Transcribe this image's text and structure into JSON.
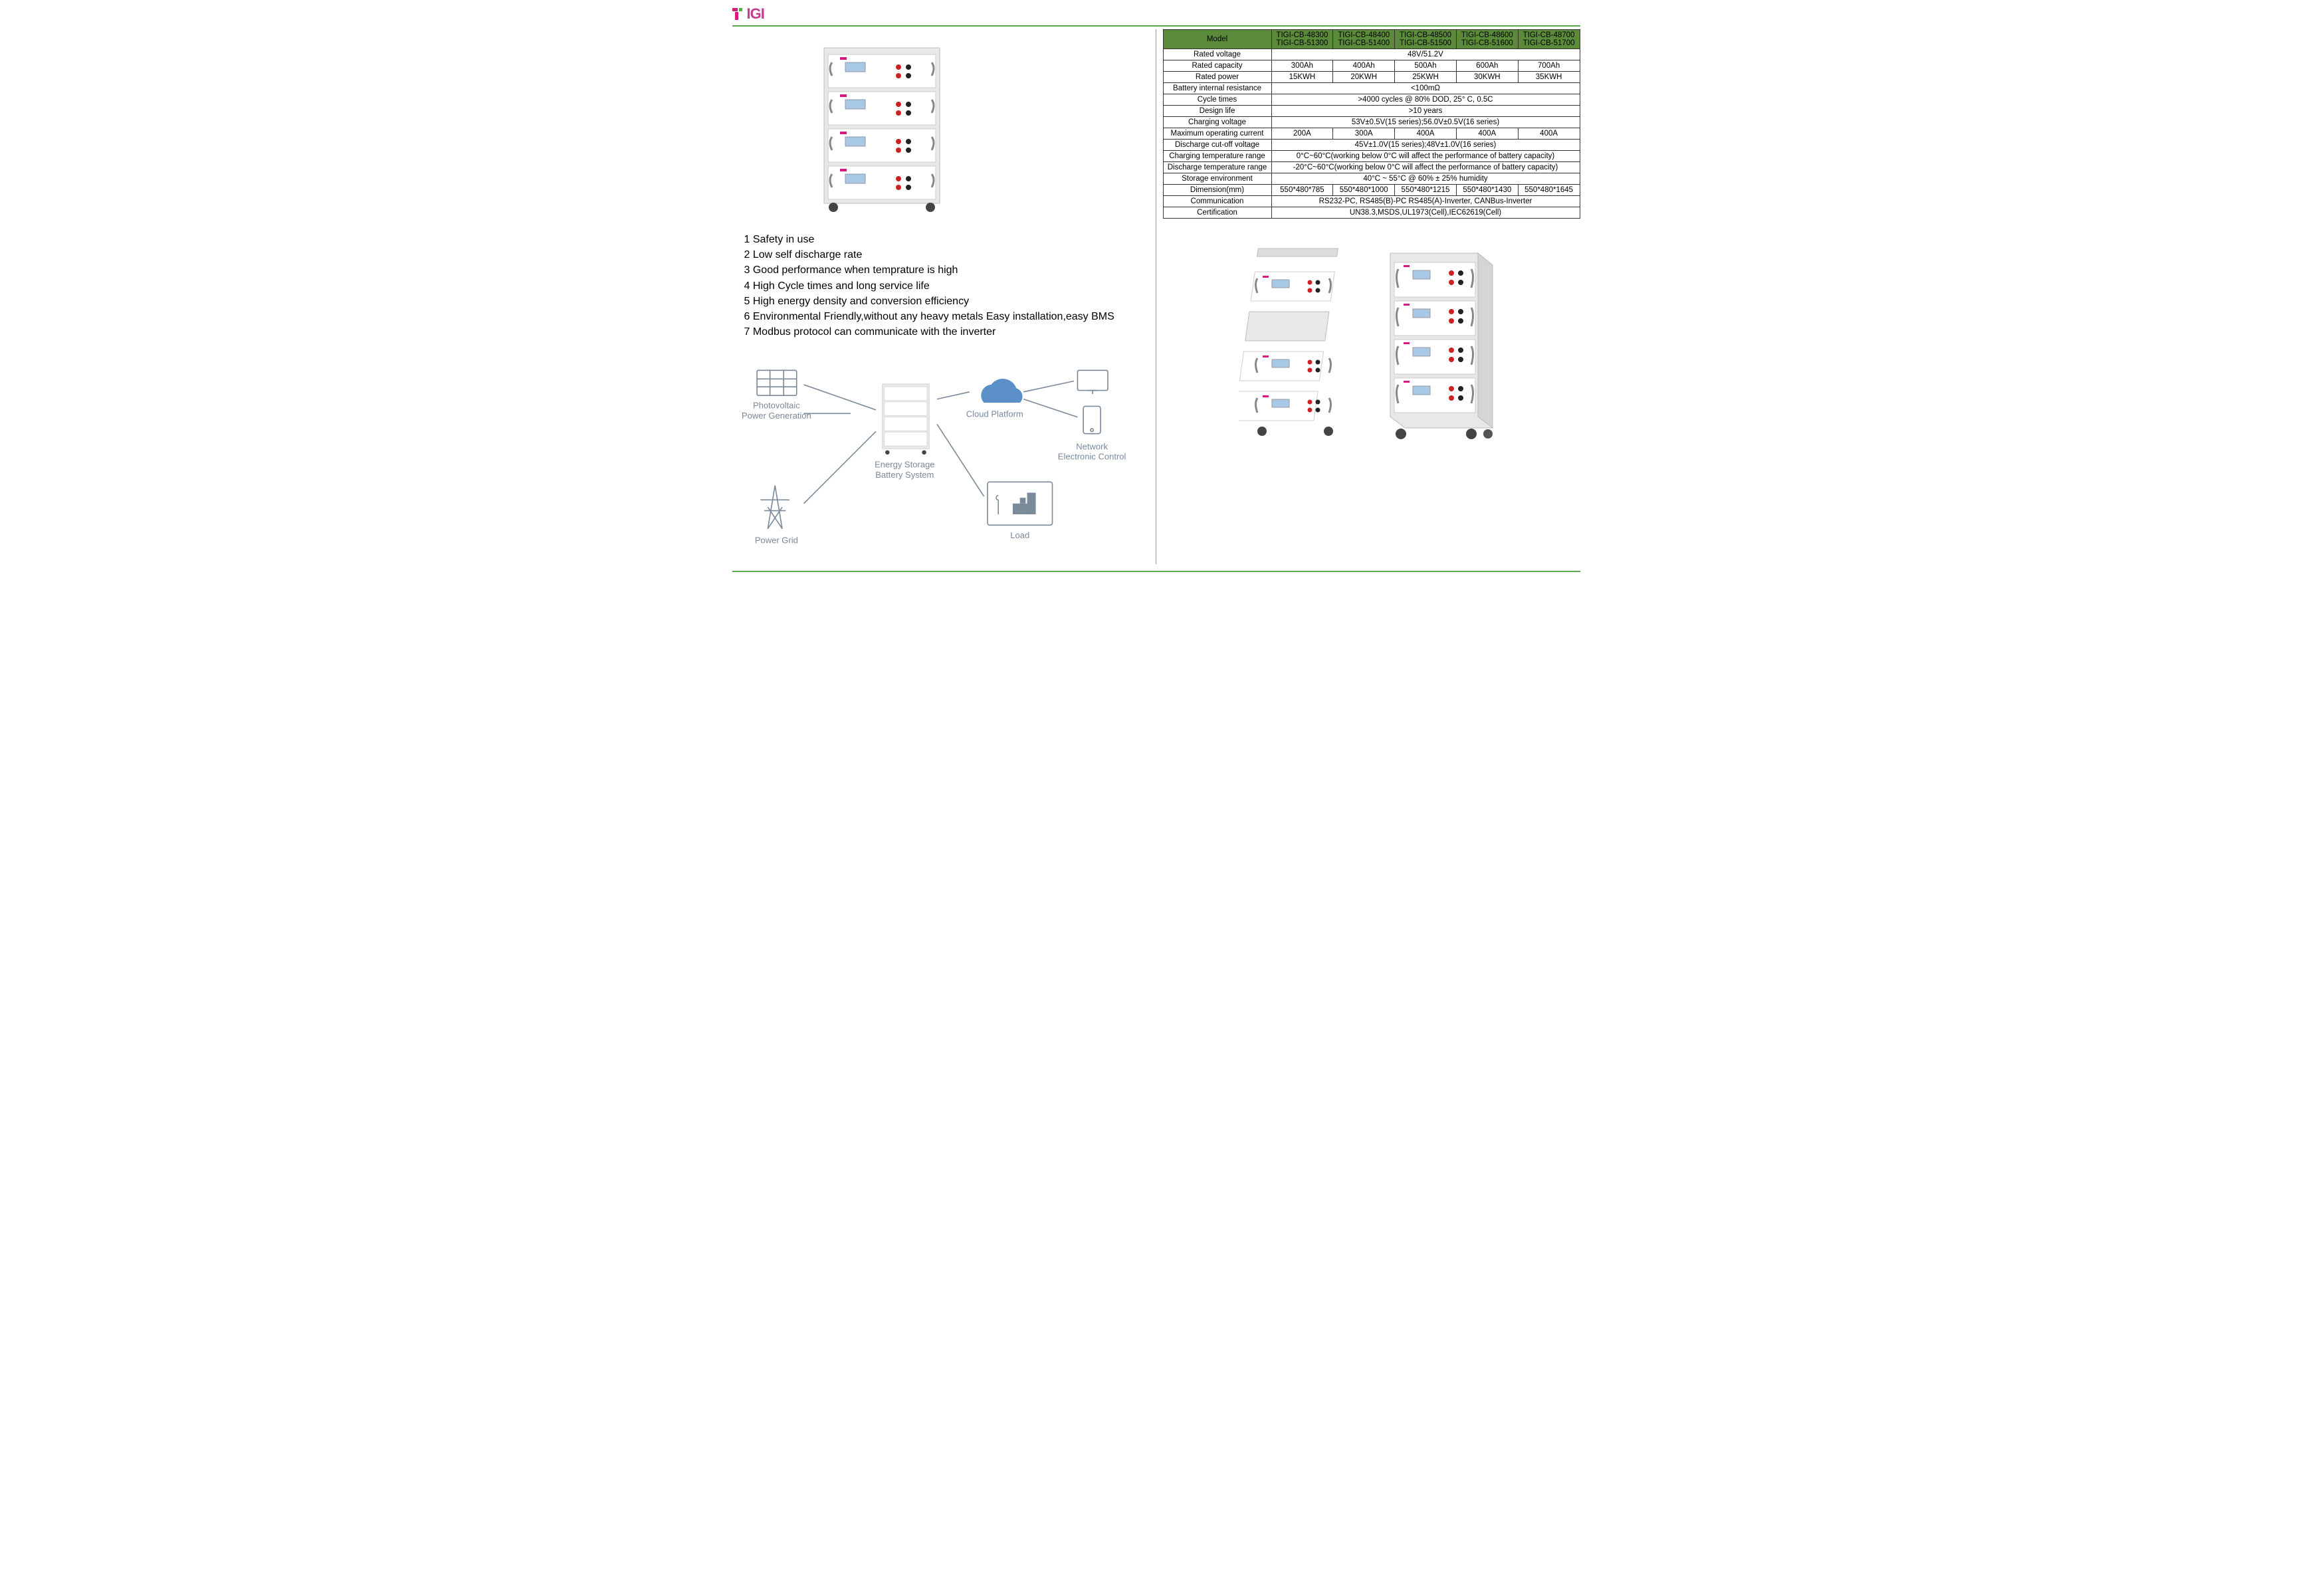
{
  "logo": {
    "t": "T",
    "rest": "IGI"
  },
  "features": [
    "1 Safety in use",
    "2 Low self discharge rate",
    "3 Good performance when temprature is high",
    "4 High Cycle times and long service life",
    "5 High energy density and conversion efficiency",
    "6 Environmental Friendly,without any heavy metals Easy installation,easy BMS",
    "7 Modbus protocol can communicate with the inverter"
  ],
  "diagram": {
    "pv": "Photovoltaic\nPower Generation",
    "grid": "Power Grid",
    "storage": "Energy Storage\nBattery System",
    "cloud": "Cloud Platform",
    "load": "Load",
    "network": "Network\nElectronic Control"
  },
  "spec": {
    "header": {
      "model": "Model",
      "cols": [
        [
          "TIGI-CB-48300",
          "TIGI-CB-51300"
        ],
        [
          "TIGI-CB-48400",
          "TIGI-CB-51400"
        ],
        [
          "TIGI-CB-48500",
          "TIGI-CB-51500"
        ],
        [
          "TIGI-CB-48600",
          "TIGI-CB-51600"
        ],
        [
          "TIGI-CB-48700",
          "TIGI-CB-51700"
        ]
      ]
    },
    "rows": [
      {
        "label": "Rated voltage",
        "span": "48V/51.2V"
      },
      {
        "label": "Rated capacity",
        "cells": [
          "300Ah",
          "400Ah",
          "500Ah",
          "600Ah",
          "700Ah"
        ]
      },
      {
        "label": "Rated power",
        "cells": [
          "15KWH",
          "20KWH",
          "25KWH",
          "30KWH",
          "35KWH"
        ]
      },
      {
        "label": "Battery internal resistance",
        "span": "<100mΩ"
      },
      {
        "label": "Cycle times",
        "span": ">4000 cycles @ 80% DOD, 25° C, 0.5C"
      },
      {
        "label": "Design life",
        "span": ">10 years"
      },
      {
        "label": "Charging voltage",
        "span": "53V±0.5V(15 series);56.0V±0.5V(16 series)"
      },
      {
        "label": "Maximum operating current",
        "cells": [
          "200A",
          "300A",
          "400A",
          "400A",
          "400A"
        ]
      },
      {
        "label": "Discharge cut-off voltage",
        "span": "45V±1.0V(15 series);48V±1.0V(16 series)"
      },
      {
        "label": "Charging temperature range",
        "span": "0°C~60°C(working below 0°C will affect the performance of battery capacity)"
      },
      {
        "label": "Discharge temperature range",
        "span": "-20°C~60°C(working below 0°C will affect the performance of battery capacity)"
      },
      {
        "label": "Storage environment",
        "span": "40°C ~ 55°C @ 60% ± 25% humidity"
      },
      {
        "label": "Dimension(mm)",
        "cells": [
          "550*480*785",
          "550*480*1000",
          "550*480*1215",
          "550*480*1430",
          "550*480*1645"
        ]
      },
      {
        "label": "Communication",
        "span": "RS232-PC, RS485(B)-PC RS485(A)-Inverter, CANBus-Inverter"
      },
      {
        "label": "Certification",
        "span": "UN38.3,MSDS,UL1973(Cell),IEC62619(Cell)"
      }
    ]
  },
  "colors": {
    "accent_green": "#5aa84e",
    "table_header_green": "#5a8a3a",
    "logo_pink": "#c43a8e"
  }
}
